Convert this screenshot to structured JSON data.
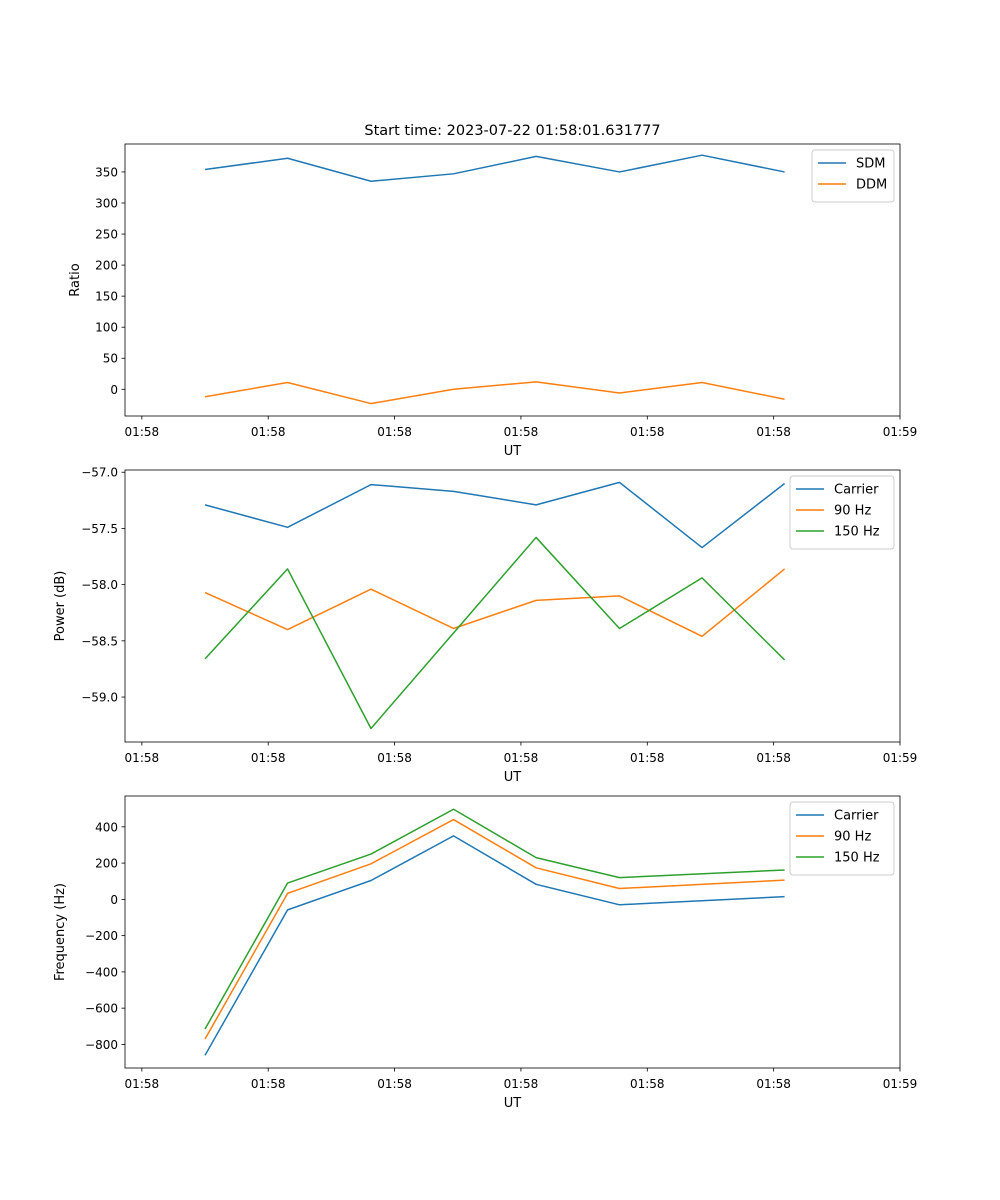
{
  "figure_title": "Start time: 2023-07-22 01:58:01.631777",
  "colors": {
    "c0": "#1f77b4",
    "c1": "#ff7f0e",
    "c2": "#2ca02c",
    "axis": "#000000"
  },
  "x_tick_labels": [
    "01:58",
    "01:58",
    "01:58",
    "01:58",
    "01:58",
    "01:58",
    "01:59"
  ],
  "x_ticks_s": [
    0.0,
    1.5,
    3.0,
    4.5,
    6.0,
    7.5,
    9.0
  ],
  "xlim": [
    -0.2,
    9.0
  ],
  "chart_data": [
    {
      "type": "line",
      "title": "Start time: 2023-07-22 01:58:01.631777",
      "xlabel": "UT",
      "ylabel": "Ratio",
      "ylim": [
        -43,
        395
      ],
      "yticks": [
        0,
        50,
        100,
        150,
        200,
        250,
        300,
        350
      ],
      "ytick_labels": [
        "0",
        "50",
        "100",
        "150",
        "200",
        "250",
        "300",
        "350"
      ],
      "x": [
        0.75,
        1.73,
        2.72,
        3.7,
        4.68,
        5.67,
        6.65,
        7.63
      ],
      "legend_position": "top-right",
      "series": [
        {
          "name": "SDM",
          "color": "#1f77b4",
          "values": [
            354,
            372,
            335,
            347,
            375,
            350,
            377,
            350
          ]
        },
        {
          "name": "DDM",
          "color": "#ff7f0e",
          "values": [
            -12,
            11,
            -23,
            0,
            12,
            -6,
            11,
            -16
          ]
        }
      ]
    },
    {
      "type": "line",
      "title": "",
      "xlabel": "UT",
      "ylabel": "Power (dB)",
      "ylim": [
        -59.4,
        -56.98
      ],
      "yticks": [
        -59.0,
        -58.5,
        -58.0,
        -57.5,
        -57.0
      ],
      "ytick_labels": [
        "−59.0",
        "−58.5",
        "−58.0",
        "−57.5",
        "−57.0"
      ],
      "x": [
        0.75,
        1.73,
        2.72,
        3.7,
        4.68,
        5.67,
        6.65,
        7.63
      ],
      "legend_position": "top-right",
      "series": [
        {
          "name": "Carrier",
          "color": "#1f77b4",
          "values": [
            -57.29,
            -57.49,
            -57.11,
            -57.17,
            -57.29,
            -57.09,
            -57.67,
            -57.1
          ]
        },
        {
          "name": "90 Hz",
          "color": "#ff7f0e",
          "values": [
            -58.07,
            -58.4,
            -58.04,
            -58.39,
            -58.14,
            -58.1,
            -58.46,
            -57.86
          ]
        },
        {
          "name": "150 Hz",
          "color": "#2ca02c",
          "values": [
            -58.66,
            -57.86,
            -59.28,
            -58.43,
            -57.58,
            -58.39,
            -57.94,
            -58.67
          ]
        }
      ]
    },
    {
      "type": "line",
      "title": "",
      "xlabel": "UT",
      "ylabel": "Frequency (Hz)",
      "ylim": [
        -930,
        570
      ],
      "yticks": [
        -800,
        -600,
        -400,
        -200,
        0,
        200,
        400
      ],
      "ytick_labels": [
        "−800",
        "−600",
        "−400",
        "−200",
        "0",
        "200",
        "400"
      ],
      "x": [
        0.75,
        1.73,
        2.72,
        3.7,
        4.68,
        5.67,
        7.63
      ],
      "legend_position": "top-right",
      "series": [
        {
          "name": "Carrier",
          "color": "#1f77b4",
          "values": [
            -860,
            -58,
            104,
            350,
            83,
            -30,
            15
          ]
        },
        {
          "name": "90 Hz",
          "color": "#ff7f0e",
          "values": [
            -770,
            33,
            196,
            440,
            174,
            60,
            106
          ]
        },
        {
          "name": "150 Hz",
          "color": "#2ca02c",
          "values": [
            -715,
            90,
            250,
            497,
            230,
            120,
            162
          ]
        }
      ]
    }
  ]
}
